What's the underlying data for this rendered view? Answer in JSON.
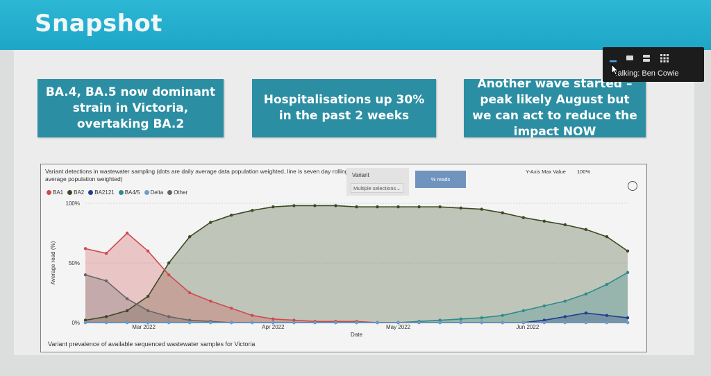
{
  "header": {
    "title": "Snapshot"
  },
  "callouts": [
    "BA.4, BA.5 now dominant strain in Victoria, overtaking BA.2",
    "Hospitalisations up 30% in the past 2 weeks",
    "Another wave started – peak likely August but we can act to reduce the impact NOW"
  ],
  "panel": {
    "note": "Variant detections in wastewater sampling (dots are daily average data population weighted, line is seven day rolling average population weighted)",
    "filter_label": "Variant",
    "filter_value": "Multiple selections",
    "reads_button": "% reads",
    "ymax_label": "Y-Axis Max Value",
    "ymax_value": "100%",
    "caption": "Variant prevalence of available sequenced wastewater samples for Victoria"
  },
  "meeting": {
    "talking": "Talking: Ben Cowie"
  },
  "colors": {
    "BA1": "#cf4a4e",
    "BA2": "#3b4a22",
    "BA2121": "#213f8f",
    "BA4/5": "#2e8c8c",
    "Delta": "#6d9fc9",
    "Other": "#666666"
  },
  "chart_data": {
    "type": "area",
    "xlabel": "Date",
    "ylabel": "Average read (%)",
    "ylim": [
      0,
      100
    ],
    "yticks": [
      "0%",
      "50%",
      "100%"
    ],
    "x_ticks": [
      "Mar 2022",
      "Apr 2022",
      "May 2022",
      "Jun 2022"
    ],
    "legend": [
      "BA1",
      "BA2",
      "BA2121",
      "BA4/5",
      "Delta",
      "Other"
    ],
    "x": [
      "2022-02-15",
      "2022-02-20",
      "2022-02-25",
      "2022-03-02",
      "2022-03-07",
      "2022-03-12",
      "2022-03-17",
      "2022-03-22",
      "2022-03-27",
      "2022-04-01",
      "2022-04-06",
      "2022-04-11",
      "2022-04-16",
      "2022-04-21",
      "2022-04-26",
      "2022-05-01",
      "2022-05-06",
      "2022-05-11",
      "2022-05-16",
      "2022-05-21",
      "2022-05-26",
      "2022-05-31",
      "2022-06-05",
      "2022-06-10",
      "2022-06-15",
      "2022-06-20",
      "2022-06-25"
    ],
    "series": [
      {
        "name": "BA1",
        "values": [
          62,
          58,
          75,
          60,
          40,
          25,
          18,
          12,
          6,
          3,
          2,
          1,
          1,
          1,
          0,
          0,
          0,
          0,
          0,
          0,
          0,
          0,
          0,
          0,
          0,
          0,
          0
        ]
      },
      {
        "name": "BA2",
        "values": [
          2,
          5,
          10,
          22,
          50,
          72,
          84,
          90,
          94,
          97,
          98,
          98,
          98,
          97,
          97,
          97,
          97,
          97,
          96,
          95,
          92,
          88,
          85,
          82,
          78,
          72,
          60
        ]
      },
      {
        "name": "BA2121",
        "values": [
          0,
          0,
          0,
          0,
          0,
          0,
          0,
          0,
          0,
          0,
          0,
          0,
          0,
          0,
          0,
          0,
          0,
          0,
          0,
          0,
          0,
          0,
          2,
          5,
          8,
          6,
          4
        ]
      },
      {
        "name": "BA4/5",
        "values": [
          0,
          0,
          0,
          0,
          0,
          0,
          0,
          0,
          0,
          0,
          0,
          0,
          0,
          0,
          0,
          0,
          1,
          2,
          3,
          4,
          6,
          10,
          14,
          18,
          24,
          32,
          42
        ]
      },
      {
        "name": "Delta",
        "values": [
          0,
          0,
          0,
          0,
          0,
          0,
          0,
          0,
          0,
          0,
          0,
          0,
          0,
          0,
          0,
          0,
          0,
          0,
          0,
          0,
          0,
          0,
          0,
          0,
          0,
          0,
          0
        ]
      },
      {
        "name": "Other",
        "values": [
          40,
          35,
          20,
          10,
          5,
          2,
          1,
          0,
          0,
          0,
          0,
          0,
          0,
          0,
          0,
          0,
          0,
          0,
          0,
          0,
          0,
          0,
          0,
          0,
          0,
          0,
          0
        ]
      }
    ]
  }
}
